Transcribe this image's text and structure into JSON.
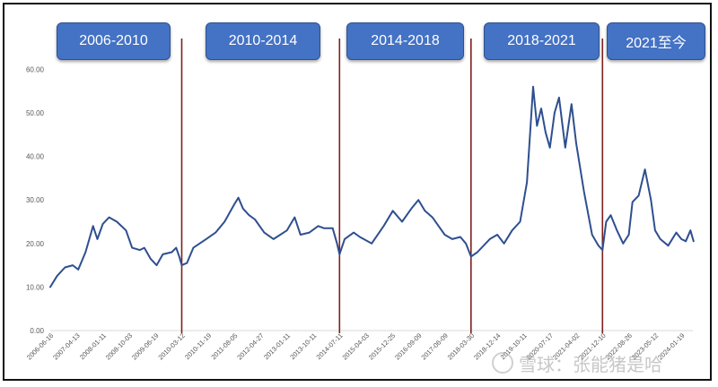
{
  "colors": {
    "line": "#2e4f8f",
    "divider": "#7f1f1f",
    "box": "#4472c4",
    "axis_text": "#595959"
  },
  "periods": [
    {
      "label": "2006-2010"
    },
    {
      "label": "2010-2014"
    },
    {
      "label": "2014-2018"
    },
    {
      "label": "2018-2021"
    },
    {
      "label": "2021至今"
    }
  ],
  "watermark": {
    "text": "雪球：张能猪是哈"
  },
  "chart_data": {
    "type": "line",
    "title": "",
    "xlabel": "",
    "ylabel": "",
    "ylim": [
      0,
      65
    ],
    "yticks": [
      "0.00",
      "10.00",
      "20.00",
      "30.00",
      "40.00",
      "50.00",
      "60.00"
    ],
    "grid": false,
    "x_tick_labels": [
      "2006-06-16",
      "2007-04-13",
      "2008-01-11",
      "2008-10-03",
      "2009-06-19",
      "2010-03-12",
      "2010-11-19",
      "2011-08-05",
      "2012-04-27",
      "2013-01-11",
      "2013-10-11",
      "2014-07-11",
      "2015-04-03",
      "2015-12-25",
      "2016-09-09",
      "2017-06-09",
      "2018-03-30",
      "2018-12-14",
      "2019-10-11",
      "2020-07-17",
      "2021-04-02",
      "2021-12-10",
      "2022-08-26",
      "2023-05-12",
      "2024-01-19"
    ],
    "period_dividers": [
      "2010-03-12",
      "2014-07-11",
      "2018-03-30",
      "2021-12-10"
    ],
    "series": [
      {
        "points": [
          [
            "2006-06-16",
            10.0
          ],
          [
            "2006-09-01",
            12.5
          ],
          [
            "2006-12-01",
            14.5
          ],
          [
            "2007-03-01",
            15.0
          ],
          [
            "2007-05-01",
            14.0
          ],
          [
            "2007-07-15",
            18.0
          ],
          [
            "2007-10-01",
            24.0
          ],
          [
            "2007-11-15",
            21.0
          ],
          [
            "2008-01-11",
            24.5
          ],
          [
            "2008-03-15",
            26.0
          ],
          [
            "2008-06-01",
            25.0
          ],
          [
            "2008-09-01",
            23.0
          ],
          [
            "2008-11-01",
            19.0
          ],
          [
            "2009-01-15",
            18.5
          ],
          [
            "2009-03-01",
            19.0
          ],
          [
            "2009-05-01",
            16.5
          ],
          [
            "2009-07-01",
            15.0
          ],
          [
            "2009-09-01",
            17.5
          ],
          [
            "2009-12-01",
            18.0
          ],
          [
            "2010-01-15",
            19.0
          ],
          [
            "2010-02-15",
            17.0
          ],
          [
            "2010-03-12",
            15.0
          ],
          [
            "2010-05-01",
            15.5
          ],
          [
            "2010-07-01",
            19.0
          ],
          [
            "2010-11-01",
            21.0
          ],
          [
            "2011-02-01",
            22.5
          ],
          [
            "2011-05-01",
            25.0
          ],
          [
            "2011-08-05",
            29.0
          ],
          [
            "2011-09-15",
            30.5
          ],
          [
            "2011-11-01",
            28.0
          ],
          [
            "2012-01-01",
            26.5
          ],
          [
            "2012-03-01",
            25.5
          ],
          [
            "2012-06-01",
            22.5
          ],
          [
            "2012-09-01",
            21.0
          ],
          [
            "2013-01-11",
            23.0
          ],
          [
            "2013-04-01",
            26.0
          ],
          [
            "2013-06-01",
            22.0
          ],
          [
            "2013-09-01",
            22.5
          ],
          [
            "2013-12-01",
            24.0
          ],
          [
            "2014-02-01",
            23.5
          ],
          [
            "2014-05-01",
            23.5
          ],
          [
            "2014-06-15",
            20.0
          ],
          [
            "2014-07-11",
            17.5
          ],
          [
            "2014-09-01",
            21.0
          ],
          [
            "2014-12-01",
            22.5
          ],
          [
            "2015-02-01",
            21.5
          ],
          [
            "2015-06-01",
            20.0
          ],
          [
            "2015-10-01",
            24.0
          ],
          [
            "2016-01-01",
            27.5
          ],
          [
            "2016-04-01",
            25.0
          ],
          [
            "2016-07-01",
            28.0
          ],
          [
            "2016-09-09",
            30.0
          ],
          [
            "2016-11-15",
            27.5
          ],
          [
            "2017-02-01",
            26.0
          ],
          [
            "2017-06-09",
            22.0
          ],
          [
            "2017-09-01",
            21.0
          ],
          [
            "2017-12-01",
            21.5
          ],
          [
            "2018-02-01",
            20.0
          ],
          [
            "2018-03-30",
            17.0
          ],
          [
            "2018-06-01",
            18.0
          ],
          [
            "2018-10-01",
            21.0
          ],
          [
            "2018-12-14",
            22.0
          ],
          [
            "2019-03-01",
            20.0
          ],
          [
            "2019-06-01",
            23.0
          ],
          [
            "2019-09-01",
            25.0
          ],
          [
            "2019-11-15",
            34.0
          ],
          [
            "2020-01-20",
            56.0
          ],
          [
            "2020-03-01",
            47.0
          ],
          [
            "2020-04-15",
            51.0
          ],
          [
            "2020-06-01",
            45.5
          ],
          [
            "2020-07-17",
            42.0
          ],
          [
            "2020-09-01",
            50.0
          ],
          [
            "2020-10-15",
            53.5
          ],
          [
            "2020-12-15",
            42.0
          ],
          [
            "2021-02-15",
            52.0
          ],
          [
            "2021-04-02",
            43.0
          ],
          [
            "2021-06-15",
            32.0
          ],
          [
            "2021-09-01",
            22.0
          ],
          [
            "2021-11-01",
            19.5
          ],
          [
            "2021-12-10",
            18.5
          ],
          [
            "2022-01-15",
            25.0
          ],
          [
            "2022-03-01",
            26.5
          ],
          [
            "2022-05-01",
            23.0
          ],
          [
            "2022-07-01",
            20.0
          ],
          [
            "2022-08-26",
            22.0
          ],
          [
            "2022-10-01",
            29.5
          ],
          [
            "2022-12-01",
            31.0
          ],
          [
            "2023-02-01",
            37.0
          ],
          [
            "2023-04-01",
            30.0
          ],
          [
            "2023-05-12",
            23.0
          ],
          [
            "2023-07-01",
            21.0
          ],
          [
            "2023-09-15",
            19.5
          ],
          [
            "2023-12-01",
            22.5
          ],
          [
            "2024-01-19",
            21.0
          ],
          [
            "2024-03-01",
            20.5
          ],
          [
            "2024-04-15",
            23.0
          ],
          [
            "2024-05-15",
            20.5
          ]
        ]
      }
    ]
  }
}
